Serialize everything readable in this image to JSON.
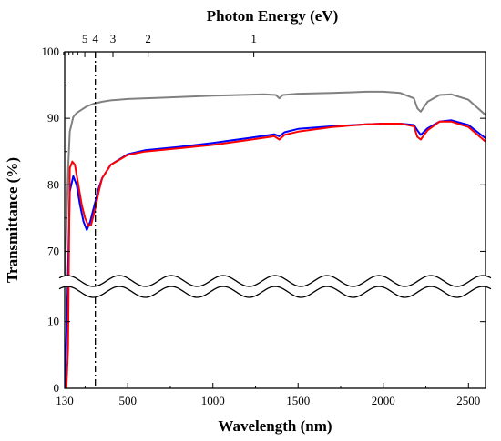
{
  "chart_data": {
    "type": "line",
    "title": "",
    "xlabel": "Wavelength (nm)",
    "ylabel": "Transmittance (%)",
    "top_axis_label": "Photon Energy (eV)",
    "x_range": [
      130,
      2600
    ],
    "x_ticks": [
      130,
      500,
      1000,
      1500,
      2000,
      2500
    ],
    "y_upper_range": [
      65,
      100
    ],
    "y_upper_ticks": [
      70,
      80,
      90,
      100
    ],
    "y_lower_range": [
      0,
      15
    ],
    "y_lower_ticks": [
      0,
      10
    ],
    "top_ticks": [
      {
        "label": "5",
        "energy_ev": 5
      },
      {
        "label": "4",
        "energy_ev": 4
      },
      {
        "label": "3",
        "energy_ev": 3
      },
      {
        "label": "2",
        "energy_ev": 2
      },
      {
        "label": "1",
        "energy_ev": 1
      }
    ],
    "top_minor_ticks_ev": [
      10,
      9,
      8,
      7,
      6
    ],
    "reference_line_x": 310,
    "axis_break": true,
    "grid": false,
    "legend": "none",
    "series": [
      {
        "color": "#808080",
        "x": [
          130,
          150,
          160,
          180,
          200,
          230,
          260,
          300,
          350,
          400,
          500,
          700,
          1000,
          1300,
          1370,
          1390,
          1410,
          1500,
          1700,
          1900,
          2000,
          2100,
          2180,
          2200,
          2220,
          2260,
          2330,
          2400,
          2500,
          2600
        ],
        "y": [
          60,
          82,
          88,
          90.2,
          90.8,
          91.3,
          91.8,
          92.2,
          92.5,
          92.7,
          92.9,
          93.1,
          93.4,
          93.6,
          93.5,
          93.0,
          93.5,
          93.7,
          93.8,
          94.0,
          94.0,
          93.8,
          93.0,
          91.5,
          91.0,
          92.5,
          93.5,
          93.6,
          92.8,
          90.5
        ]
      },
      {
        "color": "#0000ff",
        "x": [
          130,
          145,
          160,
          180,
          200,
          220,
          240,
          260,
          280,
          300,
          310,
          330,
          350,
          400,
          500,
          600,
          800,
          1000,
          1200,
          1360,
          1390,
          1420,
          1500,
          1700,
          1900,
          2000,
          2100,
          2180,
          2200,
          2220,
          2260,
          2330,
          2400,
          2500,
          2600
        ],
        "y": [
          0,
          12,
          79,
          81.3,
          80,
          77,
          74.5,
          73.2,
          74.5,
          76.5,
          77.5,
          79.5,
          81,
          83,
          84.6,
          85.2,
          85.7,
          86.3,
          87.0,
          87.6,
          87.3,
          87.9,
          88.4,
          88.8,
          89.1,
          89.2,
          89.2,
          89.0,
          88.2,
          87.5,
          88.5,
          89.5,
          89.7,
          89.0,
          87.0
        ]
      },
      {
        "color": "#ff0000",
        "x": [
          130,
          140,
          150,
          160,
          175,
          190,
          210,
          230,
          250,
          270,
          285,
          300,
          310,
          330,
          350,
          400,
          500,
          600,
          800,
          1000,
          1200,
          1360,
          1390,
          1420,
          1500,
          1700,
          1900,
          2000,
          2100,
          2180,
          2200,
          2220,
          2260,
          2330,
          2400,
          2500,
          2600
        ],
        "y": [
          0,
          0,
          6,
          82.5,
          83.5,
          83,
          80,
          77,
          75,
          73.8,
          74,
          75.5,
          76.5,
          79,
          81,
          83,
          84.5,
          85.0,
          85.5,
          86.0,
          86.7,
          87.3,
          86.8,
          87.5,
          88.0,
          88.7,
          89.1,
          89.2,
          89.2,
          88.8,
          87.2,
          86.8,
          88.2,
          89.5,
          89.5,
          88.7,
          86.5
        ]
      }
    ]
  }
}
